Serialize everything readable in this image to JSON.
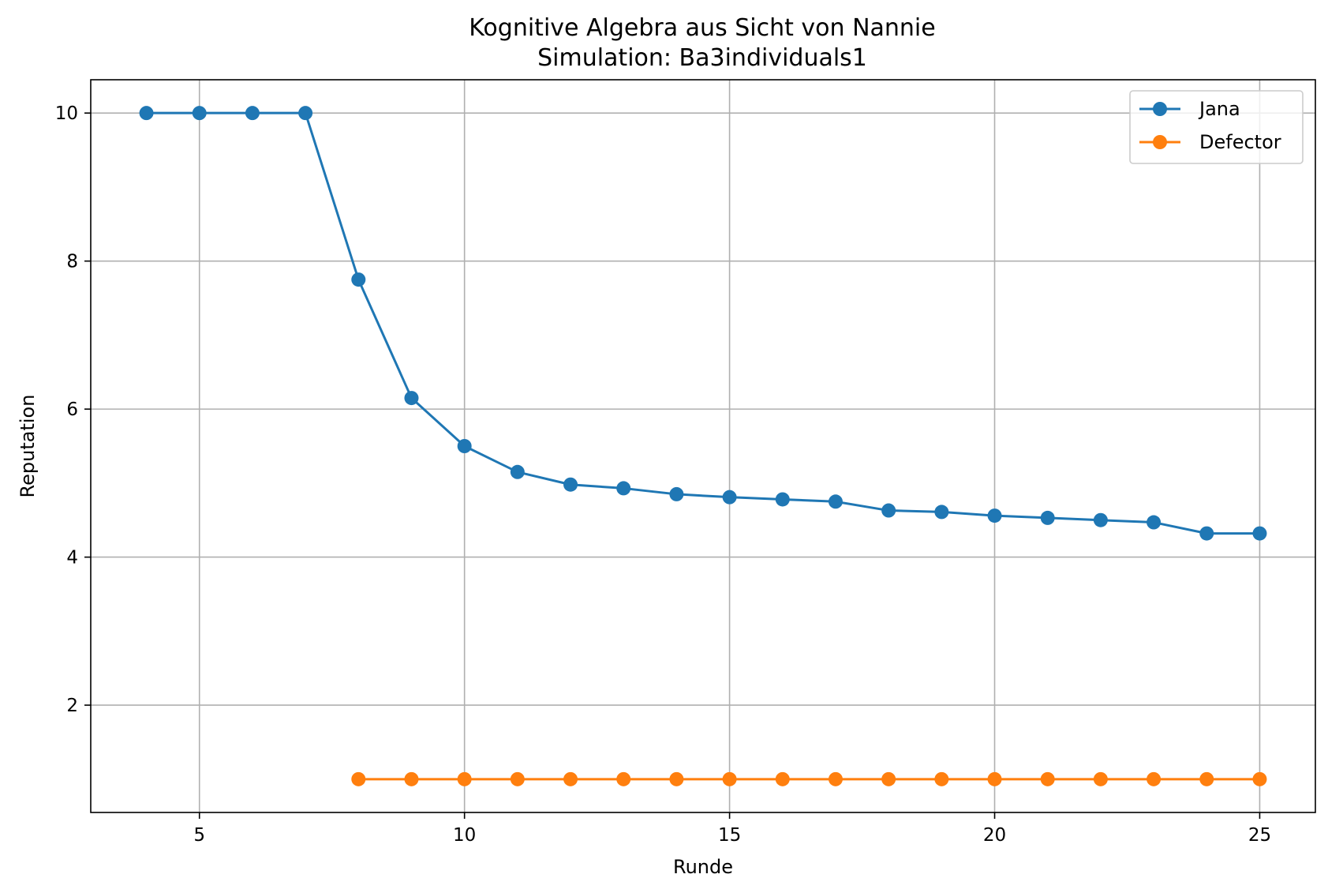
{
  "chart_data": {
    "type": "line",
    "title": "Kognitive Algebra aus Sicht von Nannie",
    "subtitle": "Simulation: Ba3individuals1",
    "xlabel": "Runde",
    "ylabel": "Reputation",
    "xlim": [
      2.95,
      26.05
    ],
    "ylim": [
      0.55,
      10.45
    ],
    "xticks": [
      5,
      10,
      15,
      20,
      25
    ],
    "yticks": [
      2,
      4,
      6,
      8,
      10
    ],
    "grid": true,
    "legend_position": "top-right",
    "series": [
      {
        "name": "Jana",
        "color": "#1f77b4",
        "x": [
          4,
          5,
          6,
          7,
          8,
          9,
          10,
          11,
          12,
          13,
          14,
          15,
          16,
          17,
          18,
          19,
          20,
          21,
          22,
          23,
          24,
          25
        ],
        "values": [
          10,
          10,
          10,
          10,
          7.75,
          6.15,
          5.5,
          5.15,
          4.98,
          4.93,
          4.85,
          4.81,
          4.78,
          4.75,
          4.63,
          4.61,
          4.56,
          4.53,
          4.5,
          4.47,
          4.32,
          4.32
        ]
      },
      {
        "name": "Defector",
        "color": "#ff7f0e",
        "x": [
          8,
          9,
          10,
          11,
          12,
          13,
          14,
          15,
          16,
          17,
          18,
          19,
          20,
          21,
          22,
          23,
          24,
          25
        ],
        "values": [
          1,
          1,
          1,
          1,
          1,
          1,
          1,
          1,
          1,
          1,
          1,
          1,
          1,
          1,
          1,
          1,
          1,
          1
        ]
      }
    ]
  }
}
